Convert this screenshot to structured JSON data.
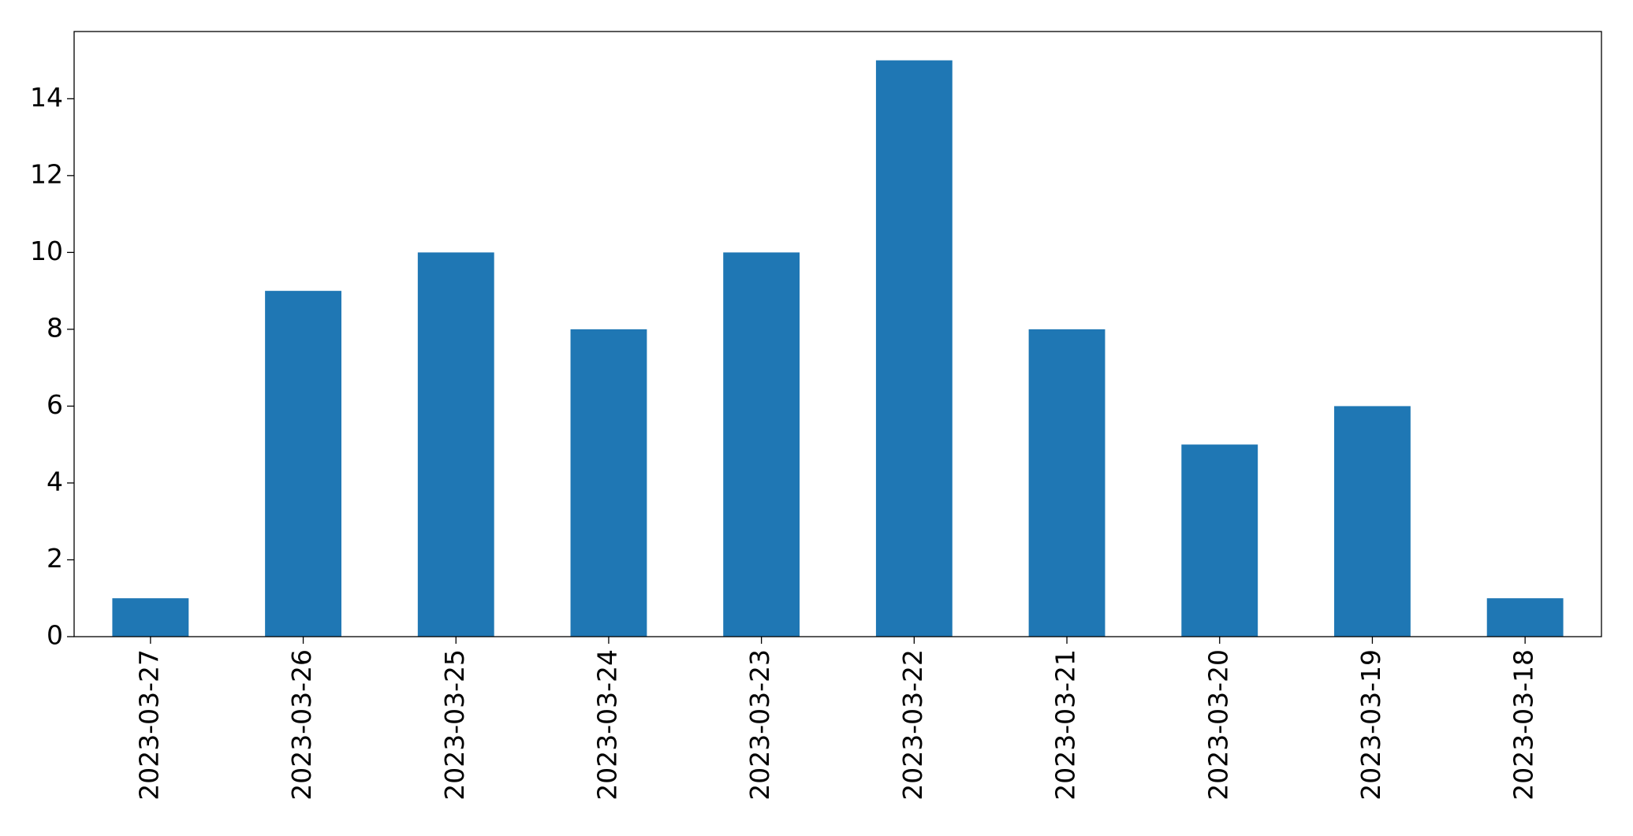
{
  "chart_data": {
    "type": "bar",
    "categories": [
      "2023-03-27",
      "2023-03-26",
      "2023-03-25",
      "2023-03-24",
      "2023-03-23",
      "2023-03-22",
      "2023-03-21",
      "2023-03-20",
      "2023-03-19",
      "2023-03-18"
    ],
    "values": [
      1,
      9,
      10,
      8,
      10,
      15,
      8,
      5,
      6,
      1
    ],
    "color": "#1f77b4",
    "ylim": [
      0,
      15.75
    ],
    "yticks": [
      0,
      2,
      4,
      6,
      8,
      10,
      12,
      14
    ],
    "grid": false
  }
}
